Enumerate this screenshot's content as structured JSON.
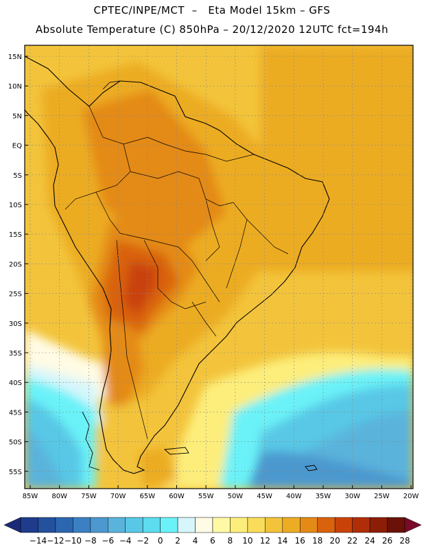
{
  "header": {
    "line1": "CPTEC/INPE/MCT  –   Eta Model 15km – GFS",
    "line2": "Absolute Temperature (C) 850hPa – 20/12/2020 12UTC fct=194h"
  },
  "map": {
    "lat_ticks": [
      "15N",
      "10N",
      "5N",
      "EQ",
      "5S",
      "10S",
      "15S",
      "20S",
      "25S",
      "30S",
      "35S",
      "40S",
      "45S",
      "50S",
      "55S"
    ],
    "lon_ticks": [
      "85W",
      "80W",
      "75W",
      "70W",
      "65W",
      "60W",
      "55W",
      "50W",
      "45W",
      "40W",
      "35W",
      "30W",
      "25W",
      "20W"
    ]
  },
  "colorbar": {
    "labels": [
      "-14",
      "-12",
      "-10",
      "-8",
      "-6",
      "-4",
      "-2",
      "0",
      "2",
      "4",
      "6",
      "8",
      "10",
      "12",
      "14",
      "16",
      "18",
      "20",
      "22",
      "24",
      "26",
      "28"
    ],
    "colors": [
      "#1f3c8c",
      "#24519e",
      "#2b66b0",
      "#3a80c2",
      "#4c98cf",
      "#5ab3db",
      "#58c8e6",
      "#5ddcef",
      "#6bf2f8",
      "#d6f6fb",
      "#fffbe4",
      "#fff9a6",
      "#fdee7c",
      "#f9dc5a",
      "#f3c43b",
      "#ecac24",
      "#e48a16",
      "#d9620c",
      "#c94308",
      "#b02e07",
      "#8c1e07",
      "#6a1208"
    ],
    "low_arrow_color": "#1a2a78",
    "high_arrow_color": "#7a0a2a"
  }
}
